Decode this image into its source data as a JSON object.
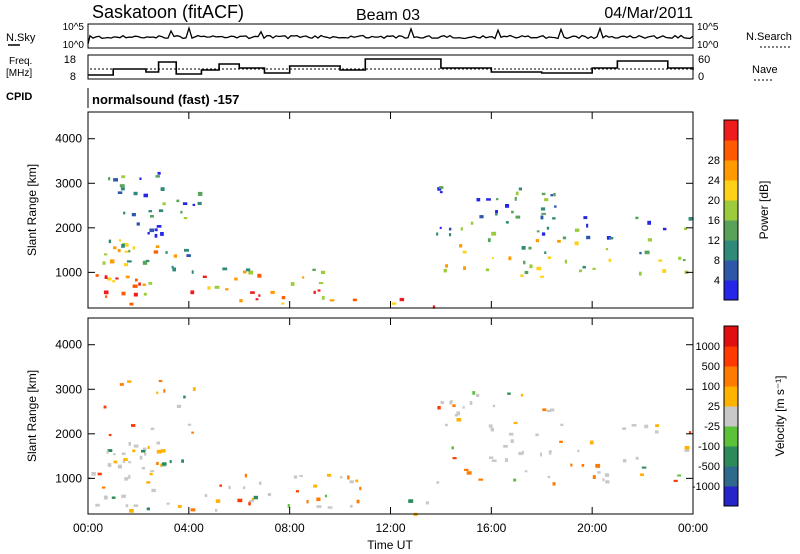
{
  "header": {
    "station": "Saskatoon (fitACF)",
    "beam": "Beam 03",
    "date": "04/Mar/2011"
  },
  "summary": {
    "nsky_label": "N.Sky",
    "nsky_ticks": [
      "10^5",
      "10^0"
    ],
    "nsearch_label": "N.Search",
    "nsearch_ticks": [
      "10^5",
      "10^0"
    ],
    "freq_label_line1": "Freq.",
    "freq_label_line2": "[MHz]",
    "freq_ticks": [
      "18",
      "8"
    ],
    "nave_label": "Nave",
    "nave_ticks": [
      "60",
      "0"
    ],
    "cpid_label": "CPID",
    "cpid_text": "normalsound (fast) -157"
  },
  "chart_data": [
    {
      "type": "heatmap",
      "title": "",
      "xlabel": "Time UT",
      "ylabel": "Slant Range [km]",
      "xlim_hours": [
        0,
        24
      ],
      "xticks": [
        "00:00",
        "04:00",
        "08:00",
        "12:00",
        "16:00",
        "20:00",
        "00:00"
      ],
      "ylim": [
        200,
        4600
      ],
      "yticks": [
        "1000",
        "2000",
        "3000",
        "4000"
      ],
      "colorbar": {
        "label": "Power [dB]",
        "ticks": [
          "4",
          "8",
          "12",
          "16",
          "20",
          "24",
          "28"
        ],
        "colors": [
          "#2626e6",
          "#2f57a8",
          "#2f8a7a",
          "#58a25a",
          "#9ccb3c",
          "#ffd21a",
          "#ff9a00",
          "#ff5a00",
          "#ee1c1c"
        ]
      },
      "scatter_regions": [
        {
          "t": [
            0.0,
            2.7
          ],
          "r": [
            300,
            1700
          ],
          "level": 0.75
        },
        {
          "t": [
            0.6,
            2.9
          ],
          "r": [
            1500,
            3300
          ],
          "level": 0.55
        },
        {
          "t": [
            2.6,
            4.4
          ],
          "r": [
            1300,
            3200
          ],
          "level": 0.45
        },
        {
          "t": [
            3.0,
            10.8
          ],
          "r": [
            300,
            1200
          ],
          "level": 0.4
        },
        {
          "t": [
            12.0,
            14.0
          ],
          "r": [
            200,
            600
          ],
          "level": 0.35
        },
        {
          "t": [
            13.8,
            18.5
          ],
          "r": [
            900,
            3000
          ],
          "level": 0.5
        },
        {
          "t": [
            18.5,
            24.0
          ],
          "r": [
            900,
            2300
          ],
          "level": 0.35
        }
      ]
    },
    {
      "type": "heatmap",
      "title": "",
      "xlabel": "Time UT",
      "ylabel": "Slant Range [km]",
      "xlim_hours": [
        0,
        24
      ],
      "xticks": [
        "00:00",
        "04:00",
        "08:00",
        "12:00",
        "16:00",
        "20:00",
        "00:00"
      ],
      "ylim": [
        200,
        4600
      ],
      "yticks": [
        "1000",
        "2000",
        "3000",
        "4000"
      ],
      "colorbar": {
        "label": "Velocity [m s⁻¹]",
        "ticks": [
          "1000",
          "500",
          "100",
          "25",
          "-25",
          "-100",
          "-500",
          "-1000"
        ],
        "colors": [
          "#2525c8",
          "#2f6a8c",
          "#2d8a5a",
          "#5cc23a",
          "#c8c8c8",
          "#ffb200",
          "#ff7a00",
          "#ff3a00",
          "#e01010"
        ]
      },
      "scatter_regions": [
        {
          "t": [
            0.0,
            2.7
          ],
          "r": [
            300,
            1700
          ],
          "level": 0.7
        },
        {
          "t": [
            0.6,
            2.9
          ],
          "r": [
            1500,
            3300
          ],
          "level": 0.4
        },
        {
          "t": [
            2.6,
            4.4
          ],
          "r": [
            1300,
            3200
          ],
          "level": 0.35
        },
        {
          "t": [
            3.0,
            10.8
          ],
          "r": [
            300,
            1200
          ],
          "level": 0.45
        },
        {
          "t": [
            12.0,
            14.0
          ],
          "r": [
            200,
            600
          ],
          "level": 0.3
        },
        {
          "t": [
            13.8,
            18.5
          ],
          "r": [
            900,
            3000
          ],
          "level": 0.4
        },
        {
          "t": [
            18.5,
            24.0
          ],
          "r": [
            900,
            2300
          ],
          "level": 0.3
        }
      ]
    }
  ],
  "xlabel": "Time UT"
}
